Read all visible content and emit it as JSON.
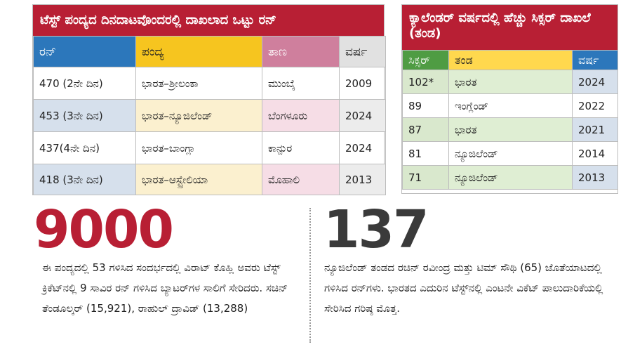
{
  "left_table": {
    "title": "ಟೆಸ್ಟ್ ಪಂದ್ಯದ ದಿನದಾಟವೊಂದರಲ್ಲಿ ದಾಖಲಾದ ಒಟ್ಟು ರನ್",
    "headers": [
      "ರನ್",
      "ಪಂದ್ಯ",
      "ತಾಣ",
      "ವರ್ಷ"
    ],
    "rows": [
      [
        "470 (2ನೇ ದಿನ)",
        "ಭಾರತ–ಶ್ರೀಲಂಕಾ",
        "ಮುಂಬೈ",
        "2009"
      ],
      [
        "453 (3ನೇ ದಿನ)",
        "ಭಾರತ–ನ್ಯೂಜಿಲೆಂಡ್",
        "ಬೆಂಗಳೂರು",
        "2024"
      ],
      [
        "437(4ನೇ ದಿನ)",
        "ಭಾರತ–ಬಾಂಗ್ಲಾ",
        "ಕಾನ್ಪುರ",
        "2024"
      ],
      [
        "418 (3ನೇ ದಿನ)",
        "ಭಾರತ–ಆಸ್ಟ್ರೇಲಿಯಾ",
        "ಮೊಹಾಲಿ",
        "2013"
      ]
    ]
  },
  "right_table": {
    "title": "ಕ್ಯಾಲೆಂಡರ್ ವರ್ಷದಲ್ಲಿ ಹೆಚ್ಚು ಸಿಕ್ಸರ್ ದಾಖಲೆ (ತಂಡ)",
    "headers": [
      "ಸಿಕ್ಸರ್",
      "ತಂಡ",
      "ವರ್ಷ"
    ],
    "rows": [
      [
        "102*",
        "ಭಾರತ",
        "2024"
      ],
      [
        "89",
        "ಇಂಗ್ಲೆಂಡ್",
        "2022"
      ],
      [
        "87",
        "ಭಾರತ",
        "2021"
      ],
      [
        "81",
        "ನ್ಯೂಜಿಲೆಂಡ್",
        "2014"
      ],
      [
        "71",
        "ನ್ಯೂಜಿಲೆಂಡ್",
        "2013"
      ]
    ]
  },
  "stat_left": {
    "number": "9000",
    "text": "ಈ ಪಂದ್ಯದಲ್ಲಿ 53 ಗಳಿಸಿದ ಸಂದರ್ಭದಲ್ಲಿ ವಿರಾಟ್ ಕೊಹ್ಲಿ ಅವರು ಟೆಸ್ಟ್ ಕ್ರಿಕೆಟ್‌ನಲ್ಲಿ 9 ಸಾವಿರ ರನ್ ಗಳಿಸಿದ ಬ್ಯಾಟರ್‌ಗಳ ಸಾಲಿಗೆ ಸೇರಿದರು. ಸಚಿನ್ ತೆಂಡೂಲ್ಕರ್ (15,921), ರಾಹುಲ್ ದ್ರಾವಿಡ್ (13,288)"
  },
  "stat_right": {
    "number": "137",
    "text": "ನ್ಯೂಜಿಲೆಂಡ್ ತಂಡದ ರಚಿನ್ ರವೀಂದ್ರ ಮತ್ತು ಟಿಮ್ ಸೌಥಿ (65) ಜೊತೆಯಾಟದಲ್ಲಿ ಗಳಿಸಿದ ರನ್‌ಗಳು. ಭಾರತದ ಎದುರಿನ ಟೆಸ್ಟ್‌ನಲ್ಲಿ ಎಂಟನೇ ವಿಕೆಟ್ ಪಾಲುದಾರಿಕೆಯಲ್ಲಿ ಸೇರಿಸಿದ ಗರಿಷ್ಠ ಮೊತ್ತ."
  },
  "colors": {
    "title_red": "#b81f34",
    "header_blue": "#2c77bb",
    "header_yellow": "#f6c51f",
    "header_pink": "#cf7f9d",
    "header_green": "#4f9c43"
  }
}
